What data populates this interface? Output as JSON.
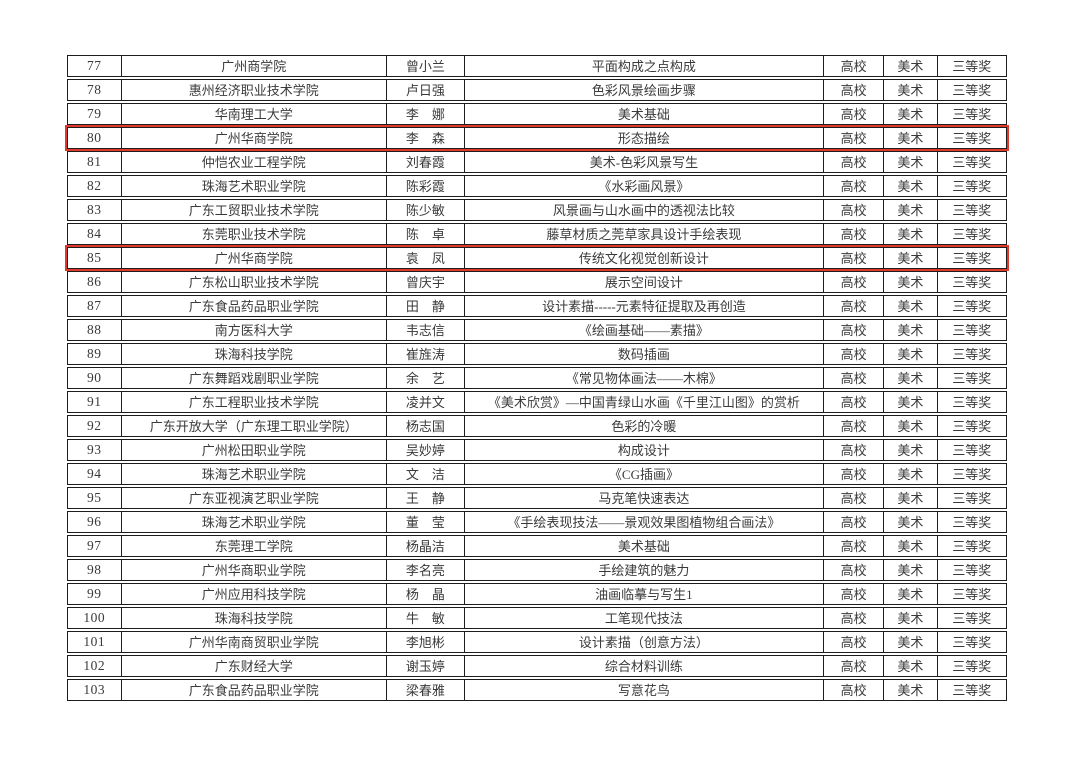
{
  "page": {
    "background": "#ffffff",
    "text_color": "#3a3a3a",
    "border_color": "#1d1d1d",
    "highlight_color": "#e0382b"
  },
  "table": {
    "columns": [
      "no",
      "institution",
      "name",
      "title",
      "category",
      "subject",
      "award"
    ],
    "rows": [
      {
        "no": "77",
        "institution": "广州商学院",
        "name": "曾小兰",
        "title": "平面构成之点构成",
        "category": "高校",
        "subject": "美术",
        "award": "三等奖",
        "highlight": false
      },
      {
        "no": "78",
        "institution": "惠州经济职业技术学院",
        "name": "卢日强",
        "title": "色彩风景绘画步骤",
        "category": "高校",
        "subject": "美术",
        "award": "三等奖",
        "highlight": false
      },
      {
        "no": "79",
        "institution": "华南理工大学",
        "name": "李　娜",
        "title": "美术基础",
        "category": "高校",
        "subject": "美术",
        "award": "三等奖",
        "highlight": false
      },
      {
        "no": "80",
        "institution": "广州华商学院",
        "name": "李　森",
        "title": "形态描绘",
        "category": "高校",
        "subject": "美术",
        "award": "三等奖",
        "highlight": true
      },
      {
        "no": "81",
        "institution": "仲恺农业工程学院",
        "name": "刘春霞",
        "title": "美术-色彩风景写生",
        "category": "高校",
        "subject": "美术",
        "award": "三等奖",
        "highlight": false
      },
      {
        "no": "82",
        "institution": "珠海艺术职业学院",
        "name": "陈彩霞",
        "title": "《水彩画风景》",
        "category": "高校",
        "subject": "美术",
        "award": "三等奖",
        "highlight": false
      },
      {
        "no": "83",
        "institution": "广东工贸职业技术学院",
        "name": "陈少敏",
        "title": "风景画与山水画中的透视法比较",
        "category": "高校",
        "subject": "美术",
        "award": "三等奖",
        "highlight": false
      },
      {
        "no": "84",
        "institution": "东莞职业技术学院",
        "name": "陈　卓",
        "title": "藤草材质之莞草家具设计手绘表现",
        "category": "高校",
        "subject": "美术",
        "award": "三等奖",
        "highlight": false
      },
      {
        "no": "85",
        "institution": "广州华商学院",
        "name": "袁　凤",
        "title": "传统文化视觉创新设计",
        "category": "高校",
        "subject": "美术",
        "award": "三等奖",
        "highlight": true
      },
      {
        "no": "86",
        "institution": "广东松山职业技术学院",
        "name": "曾庆宇",
        "title": "展示空间设计",
        "category": "高校",
        "subject": "美术",
        "award": "三等奖",
        "highlight": false
      },
      {
        "no": "87",
        "institution": "广东食品药品职业学院",
        "name": "田　静",
        "title": "设计素描-----元素特征提取及再创造",
        "category": "高校",
        "subject": "美术",
        "award": "三等奖",
        "highlight": false
      },
      {
        "no": "88",
        "institution": "南方医科大学",
        "name": "韦志信",
        "title": "《绘画基础——素描》",
        "category": "高校",
        "subject": "美术",
        "award": "三等奖",
        "highlight": false
      },
      {
        "no": "89",
        "institution": "珠海科技学院",
        "name": "崔旌涛",
        "title": "数码插画",
        "category": "高校",
        "subject": "美术",
        "award": "三等奖",
        "highlight": false
      },
      {
        "no": "90",
        "institution": "广东舞蹈戏剧职业学院",
        "name": "余　艺",
        "title": "《常见物体画法——木棉》",
        "category": "高校",
        "subject": "美术",
        "award": "三等奖",
        "highlight": false
      },
      {
        "no": "91",
        "institution": "广东工程职业技术学院",
        "name": "凌并文",
        "title": "《美术欣赏》—中国青绿山水画《千里江山图》的赏析",
        "category": "高校",
        "subject": "美术",
        "award": "三等奖",
        "highlight": false
      },
      {
        "no": "92",
        "institution": "广东开放大学（广东理工职业学院）",
        "name": "杨志国",
        "title": "色彩的冷暖",
        "category": "高校",
        "subject": "美术",
        "award": "三等奖",
        "highlight": false
      },
      {
        "no": "93",
        "institution": "广州松田职业学院",
        "name": "吴妙婷",
        "title": "构成设计",
        "category": "高校",
        "subject": "美术",
        "award": "三等奖",
        "highlight": false
      },
      {
        "no": "94",
        "institution": "珠海艺术职业学院",
        "name": "文　洁",
        "title": "《CG插画》",
        "category": "高校",
        "subject": "美术",
        "award": "三等奖",
        "highlight": false
      },
      {
        "no": "95",
        "institution": "广东亚视演艺职业学院",
        "name": "王　静",
        "title": "马克笔快速表达",
        "category": "高校",
        "subject": "美术",
        "award": "三等奖",
        "highlight": false
      },
      {
        "no": "96",
        "institution": "珠海艺术职业学院",
        "name": "董　莹",
        "title": "《手绘表现技法——景观效果图植物组合画法》",
        "category": "高校",
        "subject": "美术",
        "award": "三等奖",
        "highlight": false
      },
      {
        "no": "97",
        "institution": "东莞理工学院",
        "name": "杨晶洁",
        "title": "美术基础",
        "category": "高校",
        "subject": "美术",
        "award": "三等奖",
        "highlight": false
      },
      {
        "no": "98",
        "institution": "广州华商职业学院",
        "name": "李名亮",
        "title": "手绘建筑的魅力",
        "category": "高校",
        "subject": "美术",
        "award": "三等奖",
        "highlight": false
      },
      {
        "no": "99",
        "institution": "广州应用科技学院",
        "name": "杨　晶",
        "title": "油画临摹与写生1",
        "category": "高校",
        "subject": "美术",
        "award": "三等奖",
        "highlight": false
      },
      {
        "no": "100",
        "institution": "珠海科技学院",
        "name": "牛　敏",
        "title": "工笔现代技法",
        "category": "高校",
        "subject": "美术",
        "award": "三等奖",
        "highlight": false
      },
      {
        "no": "101",
        "institution": "广州华南商贸职业学院",
        "name": "李旭彬",
        "title": "设计素描（创意方法）",
        "category": "高校",
        "subject": "美术",
        "award": "三等奖",
        "highlight": false
      },
      {
        "no": "102",
        "institution": "广东财经大学",
        "name": "谢玉婷",
        "title": "综合材料训练",
        "category": "高校",
        "subject": "美术",
        "award": "三等奖",
        "highlight": false
      },
      {
        "no": "103",
        "institution": "广东食品药品职业学院",
        "name": "梁春雅",
        "title": "写意花鸟",
        "category": "高校",
        "subject": "美术",
        "award": "三等奖",
        "highlight": false
      }
    ]
  }
}
